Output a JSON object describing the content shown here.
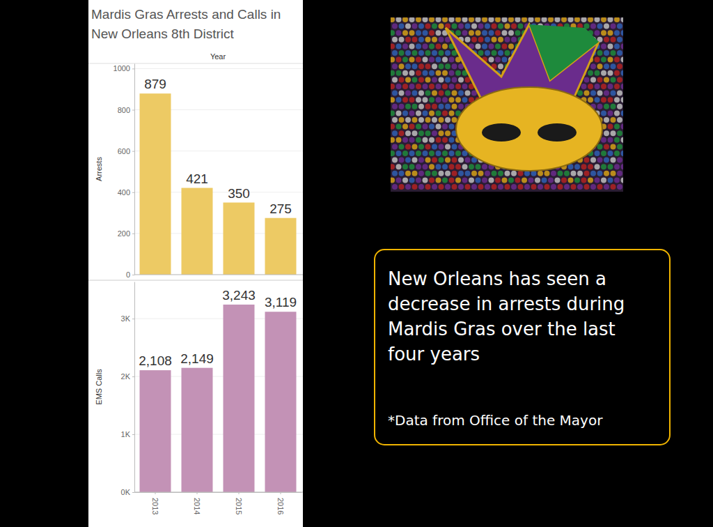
{
  "chart_data": [
    {
      "type": "bar",
      "title": "Mardis Gras Arrests and Calls in New Orleans 8th District",
      "x_label": "Year",
      "y_label": "Arrests",
      "categories": [
        "2013",
        "2014",
        "2015",
        "2016"
      ],
      "values": [
        879,
        421,
        350,
        275
      ],
      "color": "#EDCA64",
      "ylim": [
        0,
        1025
      ],
      "yticks": [
        0,
        200,
        400,
        600,
        800,
        1000
      ],
      "grid": true,
      "data_labels": true,
      "tick_labels": "y"
    },
    {
      "type": "bar",
      "y_label": "EMS Calls",
      "categories": [
        "2013",
        "2014",
        "2015",
        "2016"
      ],
      "values": [
        2108,
        2149,
        3243,
        3119
      ],
      "value_labels": [
        "2,108",
        "2,149",
        "3,243",
        "3,119"
      ],
      "color": "#C392B6",
      "ylim": [
        0,
        3640
      ],
      "yticks": [
        {
          "value": 0,
          "label": "0K"
        },
        {
          "value": 1000,
          "label": "1K"
        },
        {
          "value": 2000,
          "label": "2K"
        },
        {
          "value": 3000,
          "label": "3K"
        }
      ],
      "grid": true,
      "data_labels": true
    }
  ],
  "annotations": [
    "New Orleans has seen a decrease in arrests during Mardis Gras over the last four years",
    "*Data from Office of the Mayor"
  ]
}
